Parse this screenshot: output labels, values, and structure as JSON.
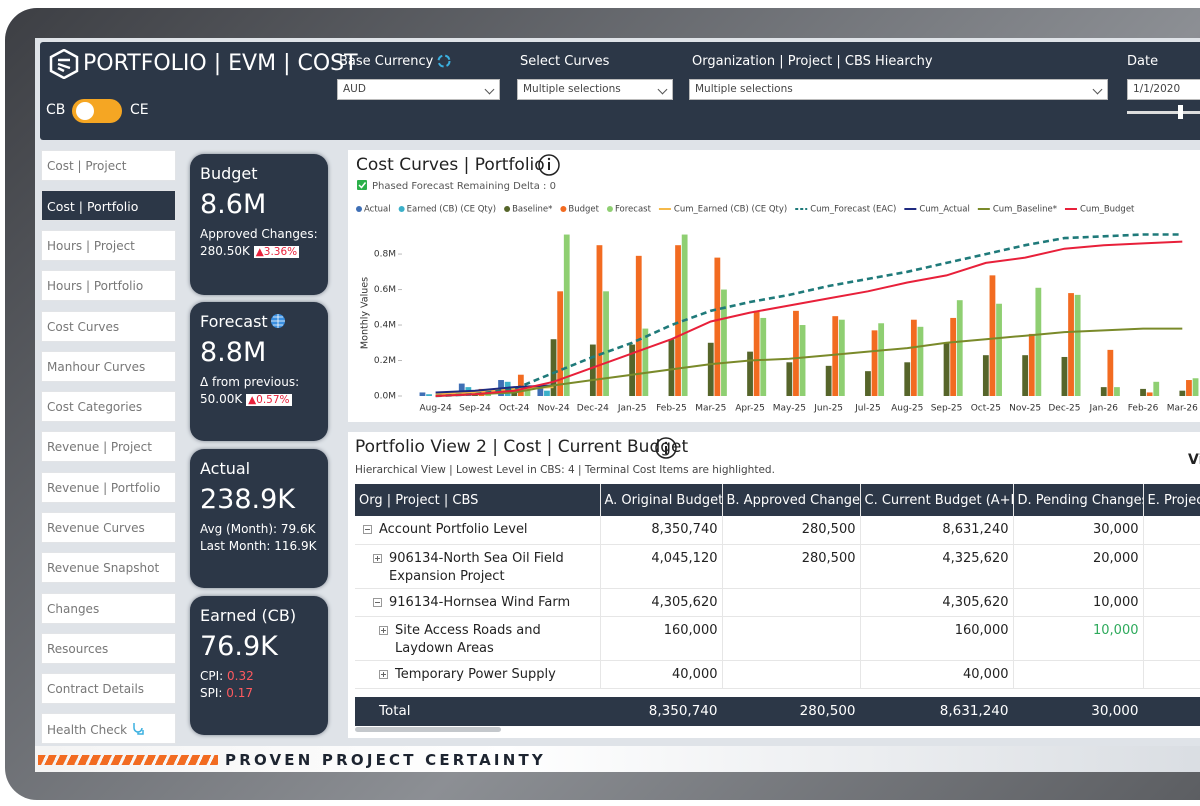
{
  "header": {
    "title": "PORTFOLIO | EVM | COST",
    "toggle_left": "CB",
    "toggle_right": "CE",
    "filters": [
      {
        "label": "Base Currency",
        "value": "AUD"
      },
      {
        "label": "Select Curves",
        "value": "Multiple selections"
      },
      {
        "label": "Organization | Project | CBS Hiearchy",
        "value": "Multiple selections"
      },
      {
        "label": "Date",
        "value": "1/1/2020"
      }
    ]
  },
  "nav": {
    "items": [
      "Cost | Project",
      "Cost | Portfolio",
      "Hours | Project",
      "Hours | Portfolio",
      "Cost Curves",
      "Manhour Curves",
      "Cost Categories",
      "Revenue | Project",
      "Revenue | Portfolio",
      "Revenue Curves",
      "Revenue Snapshot",
      "Changes",
      "Resources",
      "Contract Details",
      "Health Check"
    ]
  },
  "kpis": [
    {
      "title": "Budget",
      "value": "8.6M",
      "line1": "Approved Changes:",
      "line2": "280.50K",
      "badge": "▲3.36%"
    },
    {
      "title": "Forecast",
      "value": "8.8M",
      "line1": "Δ from previous:",
      "line2": "50.00K",
      "badge": "▲0.57%"
    },
    {
      "title": "Actual",
      "value": "238.9K",
      "line1": "Avg (Month): 79.6K",
      "line2": "Last Month: 116.9K"
    },
    {
      "title": "Earned (CB)",
      "value": "76.9K",
      "line1_label": "CPI:",
      "line1_value": "0.32",
      "line2_label": "SPI:",
      "line2_value": "0.17"
    }
  ],
  "chart_data": {
    "type": "combo",
    "title": "Cost Curves | Portfolio",
    "checkbox_label": "Phased Forecast Remaining Delta : 0",
    "y_label": "Monthly Values",
    "categories": [
      "Aug-24",
      "Sep-24",
      "Oct-24",
      "Nov-24",
      "Dec-24",
      "Jan-25",
      "Feb-25",
      "Mar-25",
      "Apr-25",
      "May-25",
      "Jun-25",
      "Jul-25",
      "Aug-25",
      "Sep-25",
      "Oct-25",
      "Nov-25",
      "Dec-25",
      "Jan-26",
      "Feb-26",
      "Mar-26"
    ],
    "ylim": [
      0,
      930000
    ],
    "yticks": [
      {
        "value": 0,
        "label": "0.0M"
      },
      {
        "value": 200000,
        "label": "0.2M"
      },
      {
        "value": 400000,
        "label": "0.4M"
      },
      {
        "value": 600000,
        "label": "0.6M"
      },
      {
        "value": 800000,
        "label": "0.8M"
      }
    ],
    "grid": false,
    "series": [
      {
        "name": "Actual",
        "type": "bar",
        "color": "#3f6fb5",
        "values": [
          20000,
          70000,
          90000,
          50000,
          null,
          null,
          null,
          null,
          null,
          null,
          null,
          null,
          null,
          null,
          null,
          null,
          null,
          null,
          null,
          null
        ]
      },
      {
        "name": "Earned (CB) (CE Qty)",
        "type": "bar",
        "color": "#3bb0c9",
        "values": [
          10000,
          50000,
          80000,
          30000,
          null,
          null,
          null,
          null,
          null,
          null,
          null,
          null,
          null,
          null,
          null,
          null,
          null,
          null,
          null,
          null
        ]
      },
      {
        "name": "Baseline*",
        "type": "bar",
        "color": "#56652a",
        "values": [
          null,
          30000,
          50000,
          320000,
          290000,
          290000,
          320000,
          300000,
          250000,
          190000,
          170000,
          140000,
          190000,
          300000,
          230000,
          230000,
          220000,
          50000,
          40000,
          30000
        ]
      },
      {
        "name": "Budget",
        "type": "bar",
        "color": "#f26b21",
        "values": [
          null,
          40000,
          120000,
          590000,
          850000,
          790000,
          850000,
          780000,
          480000,
          480000,
          450000,
          370000,
          430000,
          440000,
          680000,
          350000,
          580000,
          260000,
          20000,
          90000
        ]
      },
      {
        "name": "Forecast",
        "type": "bar",
        "color": "#8fcf72",
        "values": [
          null,
          20000,
          60000,
          910000,
          590000,
          380000,
          910000,
          600000,
          440000,
          400000,
          430000,
          410000,
          390000,
          540000,
          520000,
          610000,
          570000,
          50000,
          80000,
          100000
        ]
      },
      {
        "name": "Cum_Earned (CB) (CE Qty)",
        "type": "line",
        "color": "#f5b94a",
        "values": [
          10000,
          20000,
          40000,
          50000,
          null,
          null,
          null,
          null,
          null,
          null,
          null,
          null,
          null,
          null,
          null,
          null,
          null,
          null,
          null,
          null
        ]
      },
      {
        "name": "Cum_Forecast (EAC)",
        "type": "line",
        "dashed": true,
        "color": "#1f7a7a",
        "values": [
          0,
          10000,
          40000,
          130000,
          220000,
          300000,
          400000,
          480000,
          530000,
          570000,
          620000,
          660000,
          700000,
          750000,
          800000,
          850000,
          890000,
          900000,
          910000,
          910000
        ]
      },
      {
        "name": "Cum_Actual",
        "type": "line",
        "color": "#1f2a80",
        "values": [
          20000,
          30000,
          50000,
          60000,
          null,
          null,
          null,
          null,
          null,
          null,
          null,
          null,
          null,
          null,
          null,
          null,
          null,
          null,
          null,
          null
        ]
      },
      {
        "name": "Cum_Baseline*",
        "type": "line",
        "color": "#7a8a2a",
        "values": [
          0,
          10000,
          20000,
          60000,
          90000,
          120000,
          150000,
          180000,
          200000,
          210000,
          230000,
          250000,
          270000,
          300000,
          320000,
          340000,
          360000,
          370000,
          380000,
          380000
        ]
      },
      {
        "name": "Cum_Budget",
        "type": "line",
        "color": "#e8203a",
        "values": [
          0,
          10000,
          30000,
          80000,
          160000,
          240000,
          320000,
          420000,
          470000,
          510000,
          550000,
          590000,
          640000,
          680000,
          750000,
          780000,
          830000,
          850000,
          860000,
          870000
        ]
      }
    ]
  },
  "table_panel": {
    "title": "Portfolio View 2 | Cost | Current Budget",
    "subtitle": "Hierarchical View | Lowest Level in CBS: 4 | Terminal Cost Items are highlighted.",
    "corner_text": "Vi",
    "columns": [
      "Org | Project | CBS",
      "A. Original Budget",
      "B. Approved Changes",
      "C. Current Budget (A+B)",
      "D. Pending Changes",
      "E. Project"
    ],
    "rows": [
      [
        "Account Portfolio Level",
        "8,350,740",
        "280,500",
        "8,631,240",
        "30,000"
      ],
      [
        "906134-North Sea Oil Field Expansion Project",
        "4,045,120",
        "280,500",
        "4,325,620",
        "20,000"
      ],
      [
        "916134-Hornsea Wind Farm",
        "4,305,620",
        "4,305,620",
        "10,000"
      ],
      [
        "Site Access Roads and Laydown Areas",
        "160,000",
        "160,000",
        "10,000"
      ],
      [
        "Temporary Power Supply",
        "40,000",
        "40,000"
      ]
    ],
    "total": [
      "Total",
      "8,350,740",
      "280,500",
      "8,631,240",
      "30,000"
    ]
  },
  "footer": {
    "tagline": "PROVEN PROJECT CERTAINTY"
  }
}
